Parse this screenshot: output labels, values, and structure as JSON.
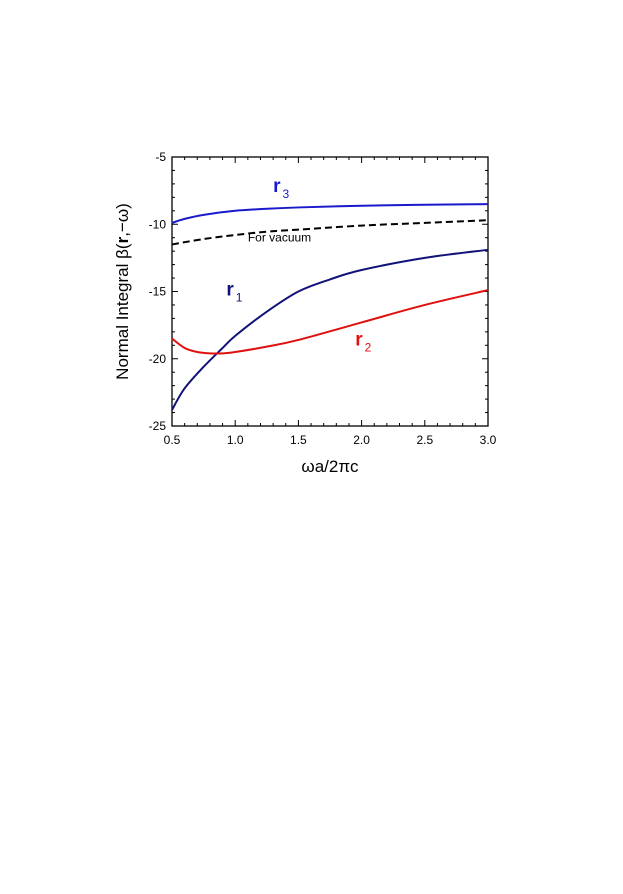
{
  "chart_data": {
    "type": "line",
    "xlabel": "ωa/2πc",
    "ylabel": {
      "prefix": "Normal Integral ",
      "beta": "β(",
      "bold": "r",
      "suffix": ",−ω)"
    },
    "xlim": [
      0.5,
      3.0
    ],
    "ylim": [
      -25,
      -5
    ],
    "x_ticks": [
      "0.5",
      "1.0",
      "1.5",
      "2.0",
      "2.5",
      "3.0"
    ],
    "y_ticks": [
      "-5",
      "-10",
      "-15",
      "-20",
      "-25"
    ],
    "grid": false,
    "legend": "none",
    "series": [
      {
        "label": "r",
        "subscript": "3",
        "color": "#1a1acc",
        "dash": "solid",
        "x": [
          0.5,
          0.6,
          0.75,
          1.0,
          1.25,
          1.5,
          2.0,
          2.5,
          3.0
        ],
        "y": [
          -9.9,
          -9.6,
          -9.3,
          -9.0,
          -8.85,
          -8.75,
          -8.62,
          -8.55,
          -8.5
        ]
      },
      {
        "label": "",
        "subscript": "",
        "color": "#000000",
        "dash": "dashed",
        "x": [
          0.5,
          0.75,
          1.0,
          1.25,
          1.5,
          2.0,
          2.5,
          3.0
        ],
        "y": [
          -11.5,
          -11.1,
          -10.8,
          -10.55,
          -10.4,
          -10.1,
          -9.9,
          -9.7
        ]
      },
      {
        "label": "r",
        "subscript": "1",
        "color": "#12127a",
        "dash": "solid",
        "x": [
          0.5,
          0.6,
          0.75,
          0.9,
          1.0,
          1.25,
          1.5,
          1.75,
          2.0,
          2.5,
          3.0
        ],
        "y": [
          -23.8,
          -22.2,
          -20.6,
          -19.2,
          -18.3,
          -16.5,
          -15.0,
          -14.1,
          -13.4,
          -12.5,
          -11.9
        ]
      },
      {
        "label": "r",
        "subscript": "2",
        "color": "#e01010",
        "dash": "solid",
        "x": [
          0.5,
          0.6,
          0.7,
          0.8,
          0.9,
          1.0,
          1.25,
          1.5,
          2.0,
          2.5,
          3.0
        ],
        "y": [
          -18.5,
          -19.2,
          -19.5,
          -19.6,
          -19.6,
          -19.5,
          -19.1,
          -18.6,
          -17.3,
          -16.0,
          -14.9
        ]
      }
    ],
    "annotations": [
      {
        "text": "For vacuum",
        "x": 1.1,
        "y": -11.0
      }
    ],
    "series_label_positions": [
      {
        "x": 1.3,
        "y": -7.6
      },
      {
        "x": 0.93,
        "y": -15.3
      },
      {
        "x": 1.95,
        "y": -19.0
      }
    ]
  }
}
